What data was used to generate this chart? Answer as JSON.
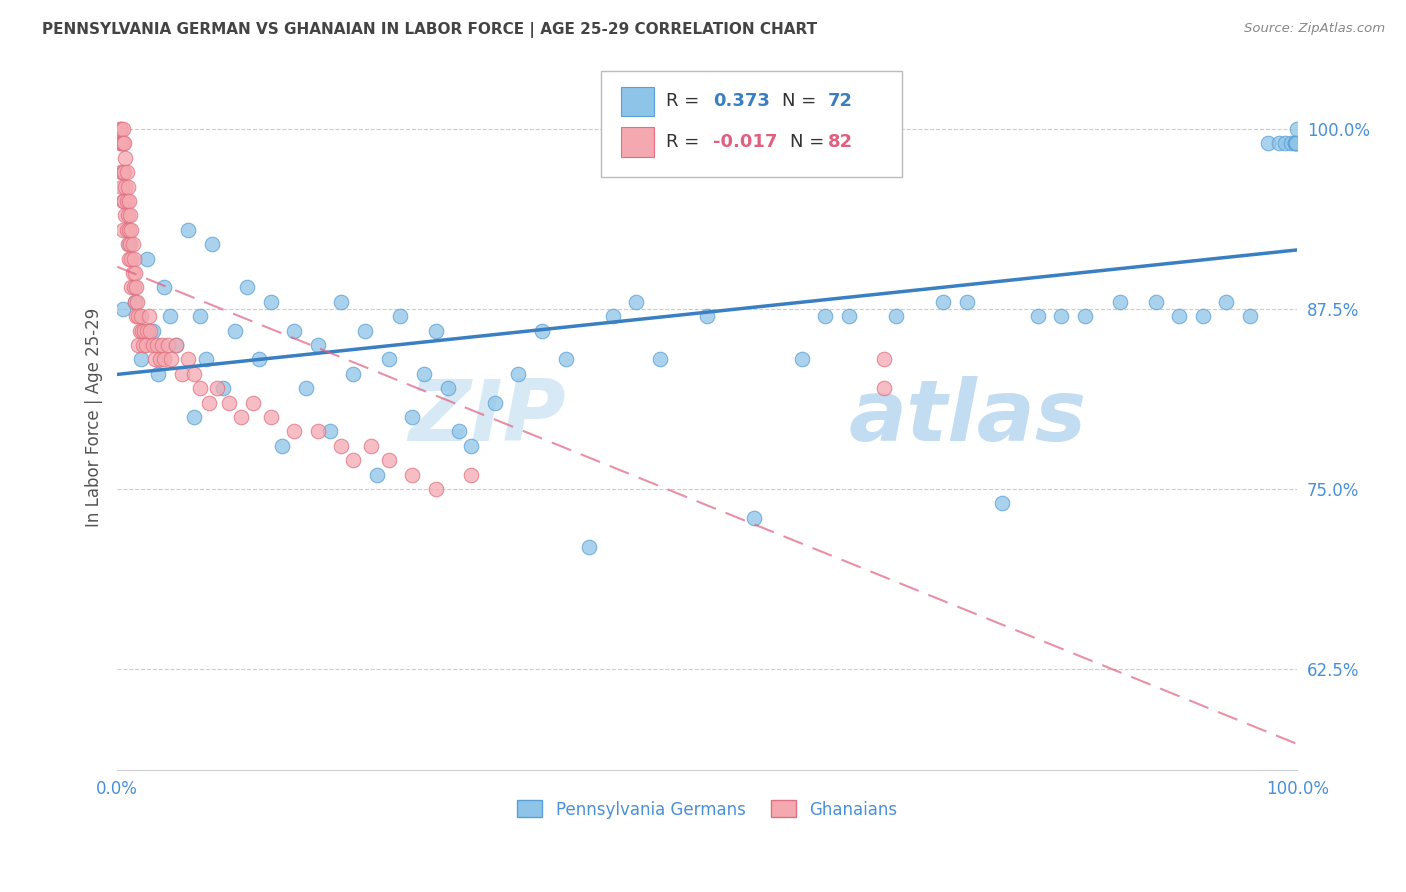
{
  "title": "PENNSYLVANIA GERMAN VS GHANAIAN IN LABOR FORCE | AGE 25-29 CORRELATION CHART",
  "source": "Source: ZipAtlas.com",
  "ylabel": "In Labor Force | Age 25-29",
  "xlim": [
    0.0,
    1.0
  ],
  "ylim": [
    0.555,
    1.045
  ],
  "yticks": [
    0.625,
    0.75,
    0.875,
    1.0
  ],
  "ytick_labels": [
    "62.5%",
    "75.0%",
    "87.5%",
    "100.0%"
  ],
  "xticks": [
    0.0,
    0.1,
    0.2,
    0.3,
    0.4,
    0.5,
    0.6,
    0.7,
    0.8,
    0.9,
    1.0
  ],
  "xtick_labels": [
    "0.0%",
    "",
    "",
    "",
    "",
    "",
    "",
    "",
    "",
    "",
    "100.0%"
  ],
  "blue_color": "#8ec4e8",
  "pink_color": "#f4a8b0",
  "blue_edge_color": "#5a9fd4",
  "pink_edge_color": "#e07080",
  "blue_line_color": "#3a7fc1",
  "pink_line_color": "#e06080",
  "axis_tick_color": "#4a90d9",
  "title_color": "#444444",
  "source_color": "#888888",
  "grid_color": "#cccccc",
  "watermark_color": "#cce5f5",
  "legend_bottom_blue": "Pennsylvania Germans",
  "legend_bottom_pink": "Ghanaians",
  "blue_scatter_x": [
    0.005,
    0.01,
    0.015,
    0.02,
    0.025,
    0.03,
    0.035,
    0.04,
    0.045,
    0.05,
    0.06,
    0.065,
    0.07,
    0.075,
    0.08,
    0.09,
    0.1,
    0.11,
    0.12,
    0.13,
    0.14,
    0.15,
    0.16,
    0.17,
    0.18,
    0.19,
    0.2,
    0.21,
    0.22,
    0.23,
    0.24,
    0.25,
    0.26,
    0.27,
    0.28,
    0.29,
    0.3,
    0.32,
    0.34,
    0.36,
    0.38,
    0.4,
    0.42,
    0.44,
    0.46,
    0.5,
    0.54,
    0.58,
    0.6,
    0.62,
    0.66,
    0.7,
    0.72,
    0.75,
    0.78,
    0.8,
    0.82,
    0.85,
    0.88,
    0.9,
    0.92,
    0.94,
    0.96,
    0.975,
    0.985,
    0.99,
    0.995,
    0.998,
    0.998,
    0.999,
    0.999,
    1.0
  ],
  "blue_scatter_y": [
    0.875,
    0.92,
    0.88,
    0.84,
    0.91,
    0.86,
    0.83,
    0.89,
    0.87,
    0.85,
    0.93,
    0.8,
    0.87,
    0.84,
    0.92,
    0.82,
    0.86,
    0.89,
    0.84,
    0.88,
    0.78,
    0.86,
    0.82,
    0.85,
    0.79,
    0.88,
    0.83,
    0.86,
    0.76,
    0.84,
    0.87,
    0.8,
    0.83,
    0.86,
    0.82,
    0.79,
    0.78,
    0.81,
    0.83,
    0.86,
    0.84,
    0.71,
    0.87,
    0.88,
    0.84,
    0.87,
    0.73,
    0.84,
    0.87,
    0.87,
    0.87,
    0.88,
    0.88,
    0.74,
    0.87,
    0.87,
    0.87,
    0.88,
    0.88,
    0.87,
    0.87,
    0.88,
    0.87,
    0.99,
    0.99,
    0.99,
    0.99,
    0.99,
    0.99,
    0.99,
    0.99,
    1.0
  ],
  "pink_scatter_x": [
    0.002,
    0.002,
    0.003,
    0.003,
    0.003,
    0.004,
    0.004,
    0.005,
    0.005,
    0.005,
    0.005,
    0.005,
    0.006,
    0.006,
    0.006,
    0.007,
    0.007,
    0.007,
    0.008,
    0.008,
    0.008,
    0.009,
    0.009,
    0.009,
    0.01,
    0.01,
    0.01,
    0.011,
    0.011,
    0.012,
    0.012,
    0.012,
    0.013,
    0.013,
    0.014,
    0.014,
    0.015,
    0.015,
    0.016,
    0.016,
    0.017,
    0.018,
    0.018,
    0.019,
    0.02,
    0.021,
    0.022,
    0.023,
    0.024,
    0.025,
    0.027,
    0.028,
    0.03,
    0.032,
    0.034,
    0.036,
    0.038,
    0.04,
    0.043,
    0.046,
    0.05,
    0.055,
    0.06,
    0.065,
    0.07,
    0.078,
    0.085,
    0.095,
    0.105,
    0.115,
    0.13,
    0.15,
    0.17,
    0.19,
    0.2,
    0.215,
    0.23,
    0.25,
    0.27,
    0.3,
    0.65,
    0.65
  ],
  "pink_scatter_y": [
    1.0,
    0.99,
    1.0,
    0.99,
    0.97,
    0.99,
    0.96,
    1.0,
    0.99,
    0.97,
    0.95,
    0.93,
    0.99,
    0.97,
    0.95,
    0.98,
    0.96,
    0.94,
    0.97,
    0.95,
    0.93,
    0.96,
    0.94,
    0.92,
    0.95,
    0.93,
    0.91,
    0.94,
    0.92,
    0.93,
    0.91,
    0.89,
    0.92,
    0.9,
    0.91,
    0.89,
    0.9,
    0.88,
    0.89,
    0.87,
    0.88,
    0.87,
    0.85,
    0.86,
    0.87,
    0.86,
    0.85,
    0.86,
    0.85,
    0.86,
    0.87,
    0.86,
    0.85,
    0.84,
    0.85,
    0.84,
    0.85,
    0.84,
    0.85,
    0.84,
    0.85,
    0.83,
    0.84,
    0.83,
    0.82,
    0.81,
    0.82,
    0.81,
    0.8,
    0.81,
    0.8,
    0.79,
    0.79,
    0.78,
    0.77,
    0.78,
    0.77,
    0.76,
    0.75,
    0.76,
    0.84,
    0.82
  ]
}
